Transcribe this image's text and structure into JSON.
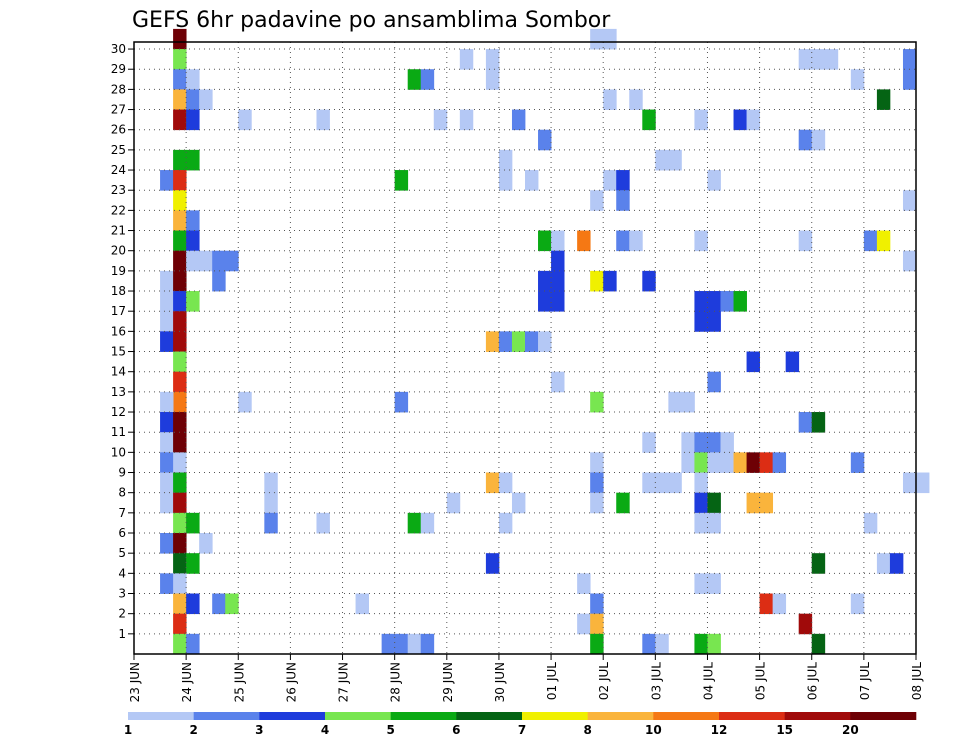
{
  "chart_data": {
    "type": "heatmap",
    "title": "GEFS 6hr padavine po ansamblima Sombor",
    "xlabel": "",
    "ylabel": "",
    "x_ticks": [
      "23 JUN",
      "24 JUN",
      "25 JUN",
      "26 JUN",
      "27 JUN",
      "28 JUN",
      "29 JUN",
      "30 JUN",
      "01 JUL",
      "02 JUL",
      "03 JUL",
      "04 JUL",
      "05 JUL",
      "06 JUL",
      "07 JUL",
      "08 JUL"
    ],
    "y_ticks": [
      "1",
      "2",
      "3",
      "4",
      "5",
      "6",
      "7",
      "8",
      "9",
      "10",
      "11",
      "12",
      "13",
      "14",
      "15",
      "16",
      "17",
      "18",
      "19",
      "20",
      "21",
      "22",
      "23",
      "24",
      "25",
      "26",
      "27",
      "28",
      "29",
      "30"
    ],
    "x_range_days": [
      0,
      15
    ],
    "y_range": [
      0,
      30
    ],
    "grid": true,
    "legend": "bottom",
    "colorbar": {
      "labels": [
        "1",
        "2",
        "3",
        "4",
        "5",
        "6",
        "7",
        "8",
        "10",
        "12",
        "15",
        "20"
      ],
      "colors": [
        "#b4c8f5",
        "#5a82eb",
        "#1e3cdc",
        "#78e650",
        "#0aaa14",
        "#056414",
        "#f0f000",
        "#fab43c",
        "#f57814",
        "#dc2d14",
        "#a00a0a",
        "#6e0005"
      ]
    },
    "cells": [
      {
        "t": 0.75,
        "m": 30,
        "c": 11
      },
      {
        "t": 0.75,
        "m": 29,
        "c": 3
      },
      {
        "t": 0.75,
        "m": 28,
        "c": 1
      },
      {
        "t": 1.0,
        "m": 28,
        "c": 0
      },
      {
        "t": 5.25,
        "m": 28,
        "c": 4
      },
      {
        "t": 5.5,
        "m": 28,
        "c": 1
      },
      {
        "t": 6.75,
        "m": 28,
        "c": 0
      },
      {
        "t": 13.75,
        "m": 28,
        "c": 0
      },
      {
        "t": 14.75,
        "m": 28,
        "c": 1
      },
      {
        "t": 6.25,
        "m": 29,
        "c": 0
      },
      {
        "t": 6.75,
        "m": 29,
        "c": 0
      },
      {
        "t": 12.75,
        "m": 29,
        "c": 0
      },
      {
        "t": 13.0,
        "m": 29,
        "c": 0
      },
      {
        "t": 13.25,
        "m": 29,
        "c": 0
      },
      {
        "t": 14.75,
        "m": 29,
        "c": 1
      },
      {
        "t": 8.75,
        "m": 30,
        "c": 0
      },
      {
        "t": 9.0,
        "m": 30,
        "c": 0
      },
      {
        "t": 0.75,
        "m": 27,
        "c": 7
      },
      {
        "t": 1.0,
        "m": 27,
        "c": 1
      },
      {
        "t": 1.25,
        "m": 27,
        "c": 0
      },
      {
        "t": 9.0,
        "m": 27,
        "c": 0
      },
      {
        "t": 9.5,
        "m": 27,
        "c": 0
      },
      {
        "t": 14.25,
        "m": 27,
        "c": 5
      },
      {
        "t": 0.75,
        "m": 26,
        "c": 10
      },
      {
        "t": 1.0,
        "m": 26,
        "c": 2
      },
      {
        "t": 2.0,
        "m": 26,
        "c": 0
      },
      {
        "t": 3.5,
        "m": 26,
        "c": 0
      },
      {
        "t": 5.75,
        "m": 26,
        "c": 0
      },
      {
        "t": 6.25,
        "m": 26,
        "c": 0
      },
      {
        "t": 7.25,
        "m": 26,
        "c": 1
      },
      {
        "t": 9.75,
        "m": 26,
        "c": 4
      },
      {
        "t": 10.75,
        "m": 26,
        "c": 0
      },
      {
        "t": 11.5,
        "m": 26,
        "c": 2
      },
      {
        "t": 11.75,
        "m": 26,
        "c": 0
      },
      {
        "t": 7.75,
        "m": 25,
        "c": 1
      },
      {
        "t": 12.75,
        "m": 25,
        "c": 1
      },
      {
        "t": 13.0,
        "m": 25,
        "c": 0
      },
      {
        "t": 0.75,
        "m": 24,
        "c": 4
      },
      {
        "t": 1.0,
        "m": 24,
        "c": 4
      },
      {
        "t": 7.0,
        "m": 24,
        "c": 0
      },
      {
        "t": 10.0,
        "m": 24,
        "c": 0
      },
      {
        "t": 10.25,
        "m": 24,
        "c": 0
      },
      {
        "t": 0.5,
        "m": 23,
        "c": 1
      },
      {
        "t": 0.75,
        "m": 23,
        "c": 9
      },
      {
        "t": 5.0,
        "m": 23,
        "c": 4
      },
      {
        "t": 7.0,
        "m": 23,
        "c": 0
      },
      {
        "t": 7.5,
        "m": 23,
        "c": 0
      },
      {
        "t": 9.0,
        "m": 23,
        "c": 0
      },
      {
        "t": 9.25,
        "m": 23,
        "c": 2
      },
      {
        "t": 11.0,
        "m": 23,
        "c": 0
      },
      {
        "t": 0.75,
        "m": 22,
        "c": 6
      },
      {
        "t": 8.75,
        "m": 22,
        "c": 0
      },
      {
        "t": 9.25,
        "m": 22,
        "c": 1
      },
      {
        "t": 14.75,
        "m": 22,
        "c": 0
      },
      {
        "t": 0.75,
        "m": 21,
        "c": 7
      },
      {
        "t": 1.0,
        "m": 21,
        "c": 1
      },
      {
        "t": 0.75,
        "m": 20,
        "c": 4
      },
      {
        "t": 1.0,
        "m": 20,
        "c": 2
      },
      {
        "t": 7.75,
        "m": 20,
        "c": 4
      },
      {
        "t": 8.0,
        "m": 20,
        "c": 0
      },
      {
        "t": 8.5,
        "m": 20,
        "c": 8
      },
      {
        "t": 9.25,
        "m": 20,
        "c": 1
      },
      {
        "t": 9.5,
        "m": 20,
        "c": 0
      },
      {
        "t": 10.75,
        "m": 20,
        "c": 0
      },
      {
        "t": 12.75,
        "m": 20,
        "c": 0
      },
      {
        "t": 14.0,
        "m": 20,
        "c": 1
      },
      {
        "t": 14.25,
        "m": 20,
        "c": 6
      },
      {
        "t": 0.75,
        "m": 19,
        "c": 11
      },
      {
        "t": 1.0,
        "m": 19,
        "c": 0
      },
      {
        "t": 1.25,
        "m": 19,
        "c": 0
      },
      {
        "t": 1.5,
        "m": 19,
        "c": 1
      },
      {
        "t": 1.75,
        "m": 19,
        "c": 1
      },
      {
        "t": 8.0,
        "m": 19,
        "c": 2
      },
      {
        "t": 14.75,
        "m": 19,
        "c": 0
      },
      {
        "t": 0.5,
        "m": 18,
        "c": 0
      },
      {
        "t": 0.75,
        "m": 18,
        "c": 11
      },
      {
        "t": 1.5,
        "m": 18,
        "c": 1
      },
      {
        "t": 7.75,
        "m": 18,
        "c": 2
      },
      {
        "t": 8.0,
        "m": 18,
        "c": 2
      },
      {
        "t": 8.75,
        "m": 18,
        "c": 6
      },
      {
        "t": 9.0,
        "m": 18,
        "c": 2
      },
      {
        "t": 9.75,
        "m": 18,
        "c": 2
      },
      {
        "t": 0.5,
        "m": 17,
        "c": 0
      },
      {
        "t": 0.75,
        "m": 17,
        "c": 2
      },
      {
        "t": 1.0,
        "m": 17,
        "c": 3
      },
      {
        "t": 7.75,
        "m": 17,
        "c": 2
      },
      {
        "t": 8.0,
        "m": 17,
        "c": 2
      },
      {
        "t": 10.75,
        "m": 17,
        "c": 2
      },
      {
        "t": 11.0,
        "m": 17,
        "c": 2
      },
      {
        "t": 11.25,
        "m": 17,
        "c": 1
      },
      {
        "t": 11.5,
        "m": 17,
        "c": 4
      },
      {
        "t": 0.5,
        "m": 16,
        "c": 0
      },
      {
        "t": 0.75,
        "m": 16,
        "c": 10
      },
      {
        "t": 10.75,
        "m": 16,
        "c": 2
      },
      {
        "t": 11.0,
        "m": 16,
        "c": 2
      },
      {
        "t": 0.5,
        "m": 15,
        "c": 2
      },
      {
        "t": 0.75,
        "m": 15,
        "c": 10
      },
      {
        "t": 6.75,
        "m": 15,
        "c": 7
      },
      {
        "t": 7.0,
        "m": 15,
        "c": 1
      },
      {
        "t": 7.25,
        "m": 15,
        "c": 3
      },
      {
        "t": 7.5,
        "m": 15,
        "c": 1
      },
      {
        "t": 7.75,
        "m": 15,
        "c": 0
      },
      {
        "t": 0.75,
        "m": 14,
        "c": 3
      },
      {
        "t": 11.75,
        "m": 14,
        "c": 2
      },
      {
        "t": 12.5,
        "m": 14,
        "c": 2
      },
      {
        "t": 0.75,
        "m": 13,
        "c": 9
      },
      {
        "t": 8.0,
        "m": 13,
        "c": 0
      },
      {
        "t": 11.0,
        "m": 13,
        "c": 1
      },
      {
        "t": 0.75,
        "m": 12,
        "c": 8
      },
      {
        "t": 0.5,
        "m": 12,
        "c": 0
      },
      {
        "t": 2.0,
        "m": 12,
        "c": 0
      },
      {
        "t": 5.0,
        "m": 12,
        "c": 1
      },
      {
        "t": 8.75,
        "m": 12,
        "c": 3
      },
      {
        "t": 10.25,
        "m": 12,
        "c": 0
      },
      {
        "t": 10.5,
        "m": 12,
        "c": 0
      },
      {
        "t": 0.5,
        "m": 11,
        "c": 2
      },
      {
        "t": 0.75,
        "m": 11,
        "c": 11
      },
      {
        "t": 12.75,
        "m": 11,
        "c": 1
      },
      {
        "t": 13.0,
        "m": 11,
        "c": 5
      },
      {
        "t": 0.5,
        "m": 10,
        "c": 0
      },
      {
        "t": 0.75,
        "m": 10,
        "c": 11
      },
      {
        "t": 9.75,
        "m": 10,
        "c": 0
      },
      {
        "t": 10.5,
        "m": 10,
        "c": 0
      },
      {
        "t": 10.75,
        "m": 10,
        "c": 1
      },
      {
        "t": 11.0,
        "m": 10,
        "c": 1
      },
      {
        "t": 11.25,
        "m": 10,
        "c": 0
      },
      {
        "t": 0.5,
        "m": 9,
        "c": 1
      },
      {
        "t": 0.75,
        "m": 9,
        "c": 0
      },
      {
        "t": 8.75,
        "m": 9,
        "c": 0
      },
      {
        "t": 10.5,
        "m": 9,
        "c": 0
      },
      {
        "t": 10.75,
        "m": 9,
        "c": 3
      },
      {
        "t": 11.0,
        "m": 9,
        "c": 0
      },
      {
        "t": 11.25,
        "m": 9,
        "c": 0
      },
      {
        "t": 11.5,
        "m": 9,
        "c": 7
      },
      {
        "t": 11.75,
        "m": 9,
        "c": 11
      },
      {
        "t": 12.0,
        "m": 9,
        "c": 9
      },
      {
        "t": 12.25,
        "m": 9,
        "c": 1
      },
      {
        "t": 13.75,
        "m": 9,
        "c": 1
      },
      {
        "t": 0.5,
        "m": 8,
        "c": 0
      },
      {
        "t": 0.75,
        "m": 8,
        "c": 4
      },
      {
        "t": 2.5,
        "m": 8,
        "c": 0
      },
      {
        "t": 6.75,
        "m": 8,
        "c": 7
      },
      {
        "t": 7.0,
        "m": 8,
        "c": 0
      },
      {
        "t": 8.75,
        "m": 8,
        "c": 1
      },
      {
        "t": 9.75,
        "m": 8,
        "c": 0
      },
      {
        "t": 10.0,
        "m": 8,
        "c": 0
      },
      {
        "t": 10.25,
        "m": 8,
        "c": 0
      },
      {
        "t": 10.75,
        "m": 8,
        "c": 0
      },
      {
        "t": 14.75,
        "m": 8,
        "c": 0
      },
      {
        "t": 15.0,
        "m": 8,
        "c": 0
      },
      {
        "t": 0.5,
        "m": 7,
        "c": 0
      },
      {
        "t": 0.75,
        "m": 7,
        "c": 10
      },
      {
        "t": 2.5,
        "m": 7,
        "c": 0
      },
      {
        "t": 6.0,
        "m": 7,
        "c": 0
      },
      {
        "t": 7.25,
        "m": 7,
        "c": 0
      },
      {
        "t": 8.75,
        "m": 7,
        "c": 0
      },
      {
        "t": 9.25,
        "m": 7,
        "c": 4
      },
      {
        "t": 10.75,
        "m": 7,
        "c": 2
      },
      {
        "t": 11.0,
        "m": 7,
        "c": 5
      },
      {
        "t": 11.75,
        "m": 7,
        "c": 7
      },
      {
        "t": 12.0,
        "m": 7,
        "c": 7
      },
      {
        "t": 0.75,
        "m": 6,
        "c": 3
      },
      {
        "t": 1.0,
        "m": 6,
        "c": 4
      },
      {
        "t": 2.5,
        "m": 6,
        "c": 1
      },
      {
        "t": 3.5,
        "m": 6,
        "c": 0
      },
      {
        "t": 5.25,
        "m": 6,
        "c": 4
      },
      {
        "t": 5.5,
        "m": 6,
        "c": 0
      },
      {
        "t": 7.0,
        "m": 6,
        "c": 0
      },
      {
        "t": 10.75,
        "m": 6,
        "c": 0
      },
      {
        "t": 11.0,
        "m": 6,
        "c": 0
      },
      {
        "t": 14.0,
        "m": 6,
        "c": 0
      },
      {
        "t": 0.5,
        "m": 5,
        "c": 1
      },
      {
        "t": 0.75,
        "m": 5,
        "c": 11
      },
      {
        "t": 1.25,
        "m": 5,
        "c": 0
      },
      {
        "t": 0.75,
        "m": 4,
        "c": 5
      },
      {
        "t": 1.0,
        "m": 4,
        "c": 4
      },
      {
        "t": 6.75,
        "m": 4,
        "c": 2
      },
      {
        "t": 13.0,
        "m": 4,
        "c": 5
      },
      {
        "t": 14.25,
        "m": 4,
        "c": 0
      },
      {
        "t": 14.5,
        "m": 4,
        "c": 2
      },
      {
        "t": 0.5,
        "m": 3,
        "c": 1
      },
      {
        "t": 0.75,
        "m": 3,
        "c": 0
      },
      {
        "t": 8.5,
        "m": 3,
        "c": 0
      },
      {
        "t": 10.75,
        "m": 3,
        "c": 0
      },
      {
        "t": 11.0,
        "m": 3,
        "c": 0
      },
      {
        "t": 0.75,
        "m": 2,
        "c": 7
      },
      {
        "t": 1.0,
        "m": 2,
        "c": 2
      },
      {
        "t": 1.5,
        "m": 2,
        "c": 1
      },
      {
        "t": 1.75,
        "m": 2,
        "c": 3
      },
      {
        "t": 4.25,
        "m": 2,
        "c": 0
      },
      {
        "t": 8.75,
        "m": 2,
        "c": 1
      },
      {
        "t": 12.0,
        "m": 2,
        "c": 9
      },
      {
        "t": 12.25,
        "m": 2,
        "c": 0
      },
      {
        "t": 13.75,
        "m": 2,
        "c": 0
      },
      {
        "t": 0.75,
        "m": 1,
        "c": 9
      },
      {
        "t": 8.5,
        "m": 1,
        "c": 0
      },
      {
        "t": 8.75,
        "m": 1,
        "c": 7
      },
      {
        "t": 12.75,
        "m": 1,
        "c": 10
      },
      {
        "t": 0.75,
        "m": 0,
        "c": 3
      },
      {
        "t": 1.0,
        "m": 0,
        "c": 1
      },
      {
        "t": 4.75,
        "m": 0,
        "c": 1
      },
      {
        "t": 5.0,
        "m": 0,
        "c": 1
      },
      {
        "t": 5.25,
        "m": 0,
        "c": 0
      },
      {
        "t": 5.5,
        "m": 0,
        "c": 1
      },
      {
        "t": 8.75,
        "m": 0,
        "c": 4
      },
      {
        "t": 9.75,
        "m": 0,
        "c": 1
      },
      {
        "t": 10.0,
        "m": 0,
        "c": 0
      },
      {
        "t": 10.75,
        "m": 0,
        "c": 4
      },
      {
        "t": 11.0,
        "m": 0,
        "c": 3
      },
      {
        "t": 13.0,
        "m": 0,
        "c": 5
      }
    ]
  }
}
